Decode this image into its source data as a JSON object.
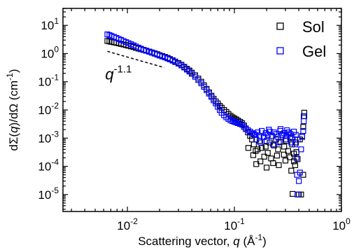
{
  "chart_data": {
    "type": "scatter",
    "xscale": "log",
    "yscale": "log",
    "xlim": [
      0.0025,
      1.0
    ],
    "ylim": [
      2.5e-06,
      40
    ],
    "xticks": [
      {
        "value": 0.01,
        "base": "10",
        "exp": "-2"
      },
      {
        "value": 0.1,
        "base": "10",
        "exp": "-1"
      },
      {
        "value": 1,
        "base": "10",
        "exp": "0"
      }
    ],
    "yticks": [
      {
        "value": 10,
        "base": "10",
        "exp": "1"
      },
      {
        "value": 1,
        "base": "10",
        "exp": "0"
      },
      {
        "value": 0.1,
        "base": "10",
        "exp": "-1"
      },
      {
        "value": 0.01,
        "base": "10",
        "exp": "-2"
      },
      {
        "value": 0.001,
        "base": "10",
        "exp": "-3"
      },
      {
        "value": 0.0001,
        "base": "10",
        "exp": "-4"
      },
      {
        "value": 1e-05,
        "base": "10",
        "exp": "-5"
      }
    ],
    "xlabel": {
      "pre": "Scattering vector, ",
      "var": "q",
      "mid": " (Å",
      "sup": "-1",
      "post": ")"
    },
    "ylabel": {
      "pre": "dΣ(",
      "var": "q",
      "mid": ")/dΩ (cm",
      "sup": "-1",
      "post": ")"
    },
    "legend_position": "top-right",
    "grid": false,
    "series": [
      {
        "name": "Sol",
        "color": "#000000",
        "marker": "open-square",
        "points": [
          [
            0.0065,
            2.8
          ],
          [
            0.0068,
            2.7
          ],
          [
            0.0071,
            2.6
          ],
          [
            0.0075,
            2.5
          ],
          [
            0.0079,
            2.4
          ],
          [
            0.0083,
            2.3
          ],
          [
            0.0087,
            2.2
          ],
          [
            0.0092,
            2.1
          ],
          [
            0.0097,
            2.0
          ],
          [
            0.0102,
            1.9
          ],
          [
            0.0108,
            1.8
          ],
          [
            0.0114,
            1.7
          ],
          [
            0.012,
            1.6
          ],
          [
            0.0127,
            1.5
          ],
          [
            0.0134,
            1.42
          ],
          [
            0.0142,
            1.34
          ],
          [
            0.015,
            1.26
          ],
          [
            0.016,
            1.18
          ],
          [
            0.017,
            1.1
          ],
          [
            0.018,
            1.02
          ],
          [
            0.019,
            0.95
          ],
          [
            0.02,
            0.88
          ],
          [
            0.0212,
            0.82
          ],
          [
            0.0225,
            0.76
          ],
          [
            0.0238,
            0.7
          ],
          [
            0.025,
            0.64
          ],
          [
            0.0265,
            0.58
          ],
          [
            0.028,
            0.52
          ],
          [
            0.03,
            0.46
          ],
          [
            0.032,
            0.4
          ],
          [
            0.034,
            0.34
          ],
          [
            0.036,
            0.29
          ],
          [
            0.038,
            0.25
          ],
          [
            0.04,
            0.21
          ],
          [
            0.043,
            0.17
          ],
          [
            0.046,
            0.13
          ],
          [
            0.049,
            0.1
          ],
          [
            0.052,
            0.075
          ],
          [
            0.055,
            0.056
          ],
          [
            0.058,
            0.042
          ],
          [
            0.061,
            0.032
          ],
          [
            0.064,
            0.025
          ],
          [
            0.067,
            0.02
          ],
          [
            0.07,
            0.017
          ],
          [
            0.073,
            0.014
          ],
          [
            0.076,
            0.012
          ],
          [
            0.08,
            0.01
          ],
          [
            0.084,
            0.0085
          ],
          [
            0.088,
            0.0072
          ],
          [
            0.092,
            0.0062
          ],
          [
            0.096,
            0.0055
          ],
          [
            0.1,
            0.005
          ],
          [
            0.104,
            0.0046
          ],
          [
            0.108,
            0.0042
          ],
          [
            0.113,
            0.0038
          ],
          [
            0.118,
            0.0034
          ],
          [
            0.123,
            0.0028
          ],
          [
            0.128,
            0.0022
          ],
          [
            0.134,
            0.0016
          ],
          [
            0.14,
            0.0012
          ],
          [
            0.146,
            0.0009
          ],
          [
            0.152,
            0.0006
          ],
          [
            0.158,
            0.00035
          ],
          [
            0.165,
            0.0004
          ],
          [
            0.172,
            0.0008
          ],
          [
            0.18,
            0.00045
          ],
          [
            0.188,
            0.0011
          ],
          [
            0.196,
            0.0005
          ],
          [
            0.205,
            0.0003
          ],
          [
            0.214,
            0.0007
          ],
          [
            0.224,
            0.0012
          ],
          [
            0.234,
            0.00055
          ],
          [
            0.245,
            0.0009
          ],
          [
            0.256,
            0.0004
          ],
          [
            0.268,
            0.00075
          ],
          [
            0.28,
            0.0013
          ],
          [
            0.292,
            0.0005
          ],
          [
            0.305,
            0.0008
          ],
          [
            0.318,
            0.00035
          ],
          [
            0.332,
            0.001
          ],
          [
            0.346,
            0.0006
          ],
          [
            0.36,
            0.00028
          ],
          [
            0.375,
            0.0007
          ],
          [
            0.39,
            0.00018
          ],
          [
            0.4,
            1e-05
          ],
          [
            0.41,
            0.0009
          ],
          [
            0.42,
            1e-05
          ],
          [
            0.43,
            0.0012
          ],
          [
            0.44,
            0.0025
          ],
          [
            0.445,
            0.006
          ],
          [
            0.45,
            0.008
          ],
          [
            0.16,
            0.00012
          ],
          [
            0.175,
            0.00015
          ],
          [
            0.2,
            9e-05
          ],
          [
            0.23,
            0.00013
          ],
          [
            0.26,
            0.00011
          ],
          [
            0.3,
            0.00016
          ],
          [
            0.34,
            7e-05
          ],
          [
            0.37,
            0.00011
          ],
          [
            0.135,
            0.00045
          ],
          [
            0.15,
            0.00025
          ],
          [
            0.19,
            0.00022
          ],
          [
            0.22,
            0.00019
          ],
          [
            0.25,
            0.00024
          ],
          [
            0.29,
            0.00026
          ],
          [
            0.33,
            0.00021
          ],
          [
            0.36,
            0.00015
          ],
          [
            0.38,
            0.00032
          ],
          [
            0.35,
            1.05e-05
          ],
          [
            0.44,
            5e-05
          ]
        ]
      },
      {
        "name": "Gel",
        "color": "#0000ff",
        "marker": "open-square",
        "points": [
          [
            0.0065,
            4.8
          ],
          [
            0.0068,
            4.5
          ],
          [
            0.0071,
            4.2
          ],
          [
            0.0075,
            3.9
          ],
          [
            0.0079,
            3.6
          ],
          [
            0.0083,
            3.3
          ],
          [
            0.0087,
            3.05
          ],
          [
            0.0092,
            2.8
          ],
          [
            0.0097,
            2.55
          ],
          [
            0.0102,
            2.35
          ],
          [
            0.0108,
            2.15
          ],
          [
            0.0114,
            1.95
          ],
          [
            0.012,
            1.78
          ],
          [
            0.0127,
            1.62
          ],
          [
            0.0134,
            1.48
          ],
          [
            0.0142,
            1.36
          ],
          [
            0.015,
            1.26
          ],
          [
            0.016,
            1.16
          ],
          [
            0.017,
            1.07
          ],
          [
            0.018,
            0.99
          ],
          [
            0.019,
            0.92
          ],
          [
            0.02,
            0.85
          ],
          [
            0.0212,
            0.79
          ],
          [
            0.0225,
            0.73
          ],
          [
            0.0238,
            0.67
          ],
          [
            0.025,
            0.62
          ],
          [
            0.0265,
            0.56
          ],
          [
            0.028,
            0.5
          ],
          [
            0.03,
            0.44
          ],
          [
            0.032,
            0.38
          ],
          [
            0.034,
            0.32
          ],
          [
            0.036,
            0.27
          ],
          [
            0.038,
            0.23
          ],
          [
            0.04,
            0.19
          ],
          [
            0.043,
            0.15
          ],
          [
            0.046,
            0.115
          ],
          [
            0.049,
            0.088
          ],
          [
            0.052,
            0.066
          ],
          [
            0.055,
            0.05
          ],
          [
            0.058,
            0.038
          ],
          [
            0.061,
            0.029
          ],
          [
            0.064,
            0.022
          ],
          [
            0.067,
            0.017
          ],
          [
            0.07,
            0.013
          ],
          [
            0.073,
            0.01
          ],
          [
            0.076,
            0.008
          ],
          [
            0.08,
            0.0065
          ],
          [
            0.084,
            0.0055
          ],
          [
            0.088,
            0.0048
          ],
          [
            0.092,
            0.0043
          ],
          [
            0.096,
            0.004
          ],
          [
            0.1,
            0.0038
          ],
          [
            0.104,
            0.0036
          ],
          [
            0.108,
            0.0034
          ],
          [
            0.113,
            0.0032
          ],
          [
            0.118,
            0.003
          ],
          [
            0.123,
            0.0025
          ],
          [
            0.128,
            0.0021
          ],
          [
            0.134,
            0.0019
          ],
          [
            0.14,
            0.0017
          ],
          [
            0.146,
            0.0015
          ],
          [
            0.152,
            0.0014
          ],
          [
            0.158,
            0.0013
          ],
          [
            0.165,
            0.0016
          ],
          [
            0.172,
            0.0012
          ],
          [
            0.18,
            0.0018
          ],
          [
            0.188,
            0.0011
          ],
          [
            0.196,
            0.0015
          ],
          [
            0.205,
            0.0013
          ],
          [
            0.214,
            0.0017
          ],
          [
            0.224,
            0.0012
          ],
          [
            0.234,
            0.0016
          ],
          [
            0.245,
            0.0014
          ],
          [
            0.256,
            0.0011
          ],
          [
            0.268,
            0.0018
          ],
          [
            0.28,
            0.0013
          ],
          [
            0.292,
            0.0015
          ],
          [
            0.305,
            0.0012
          ],
          [
            0.318,
            0.0016
          ],
          [
            0.332,
            0.0014
          ],
          [
            0.346,
            0.0011
          ],
          [
            0.36,
            0.0017
          ],
          [
            0.375,
            0.0013
          ],
          [
            0.39,
            0.0009
          ],
          [
            0.4,
            3e-05
          ],
          [
            0.41,
            6e-05
          ],
          [
            0.42,
            0.0004
          ],
          [
            0.43,
            0.0011
          ],
          [
            0.44,
            0.0018
          ],
          [
            0.445,
            0.004
          ],
          [
            0.45,
            0.006
          ],
          [
            0.16,
            0.0009
          ],
          [
            0.175,
            0.0007
          ],
          [
            0.2,
            0.0008
          ],
          [
            0.23,
            0.0006
          ],
          [
            0.26,
            0.0007
          ],
          [
            0.3,
            0.0009
          ],
          [
            0.34,
            0.0007
          ],
          [
            0.37,
            0.0006
          ],
          [
            0.38,
            0.0002
          ],
          [
            0.39,
            1e-05
          ],
          [
            0.385,
            5e-05
          ],
          [
            0.27,
            0.0021
          ],
          [
            0.21,
            0.002
          ],
          [
            0.31,
            0.0019
          ]
        ]
      }
    ],
    "annotations": [
      {
        "type": "dashed-line",
        "from": [
          0.0065,
          1.2
        ],
        "to": [
          0.022,
          0.32
        ]
      },
      {
        "type": "text",
        "base": "q",
        "sup": "-1.1",
        "at": [
          0.0062,
          0.12
        ]
      }
    ]
  }
}
